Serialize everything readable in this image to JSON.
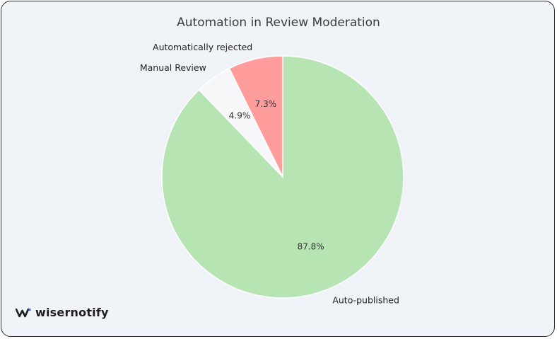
{
  "chart_data": {
    "type": "pie",
    "title": "Automation in Review Moderation",
    "slices": [
      {
        "label": "Auto-published",
        "value": 87.8,
        "value_label": "87.8%",
        "color": "#b6e5b3"
      },
      {
        "label": "Automatically rejected",
        "value": 7.3,
        "value_label": "7.3%",
        "color": "#ff9d9d"
      },
      {
        "label": "Manual Review",
        "value": 4.9,
        "value_label": "4.9%",
        "color": "#f7f7f9"
      }
    ],
    "start": "top, counter-clockwise"
  },
  "brand": {
    "name": "wisernotify"
  }
}
